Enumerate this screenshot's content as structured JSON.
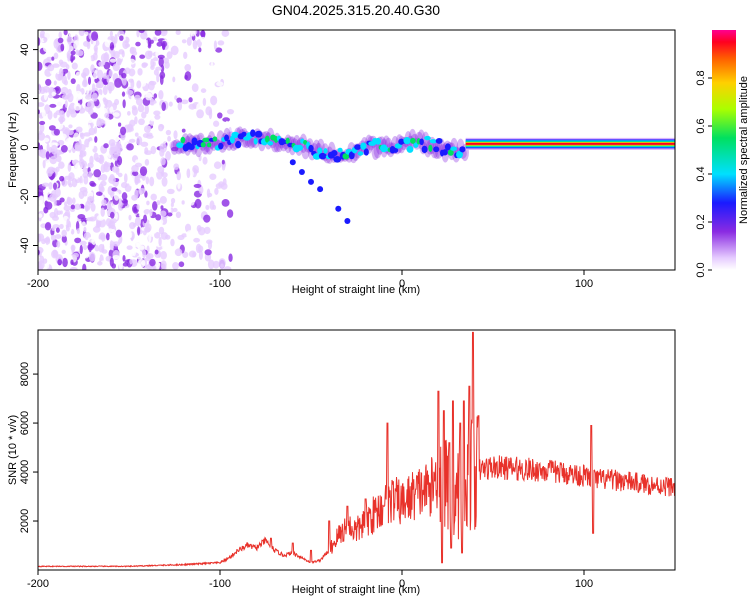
{
  "title": "GN04.2025.315.20.40.G30",
  "chart_data": [
    {
      "type": "heatmap",
      "name": "spectrogram",
      "xlabel": "Height of straight line (km)",
      "ylabel": "Frequency (Hz)",
      "xlim": [
        -200,
        150
      ],
      "ylim": [
        -50,
        48
      ],
      "xticks": [
        -200,
        -100,
        0,
        100
      ],
      "xtick_labels": [
        "-200",
        "-100",
        "0",
        "100"
      ],
      "yticks": [
        -40,
        -20,
        0,
        20,
        40
      ],
      "ytick_labels": [
        "-40",
        "-20",
        "0",
        "20",
        "40"
      ],
      "colorbar": {
        "label": "Normalized spectral amplitude",
        "range": [
          0,
          1
        ],
        "ticks": [
          0.0,
          0.2,
          0.4,
          0.6,
          0.8
        ],
        "tick_labels": [
          "0.0",
          "0.2",
          "0.4",
          "0.6",
          "0.8"
        ]
      },
      "features": {
        "noise_region_x": [
          -200,
          -100
        ],
        "dominant_line_freq_hz": 1.5,
        "dominant_line_x": [
          35,
          150
        ],
        "blob_trail": [
          [
            -120,
            1
          ],
          [
            -100,
            2
          ],
          [
            -90,
            3
          ],
          [
            -80,
            3.5
          ],
          [
            -70,
            2.5
          ],
          [
            -60,
            1.5
          ],
          [
            -50,
            -1
          ],
          [
            -40,
            -2.5
          ],
          [
            -30,
            -3.5
          ],
          [
            -20,
            0.5
          ],
          [
            -10,
            0.8
          ],
          [
            0,
            1.5
          ],
          [
            10,
            2
          ],
          [
            20,
            0.5
          ],
          [
            30,
            -1
          ]
        ],
        "descending_branch": [
          [
            -60,
            -6
          ],
          [
            -55,
            -10
          ],
          [
            -50,
            -14
          ],
          [
            -45,
            -17
          ],
          [
            -35,
            -25
          ],
          [
            -30,
            -30
          ]
        ]
      }
    },
    {
      "type": "line",
      "name": "snr",
      "xlabel": "Height of straight line (km)",
      "ylabel": "SNR (10 * v/v)",
      "xlim": [
        -200,
        150
      ],
      "ylim": [
        0,
        9800
      ],
      "xticks": [
        -200,
        -100,
        0,
        100
      ],
      "xtick_labels": [
        "-200",
        "-100",
        "0",
        "100"
      ],
      "yticks": [
        2000,
        4000,
        6000,
        8000
      ],
      "ytick_labels": [
        "2000",
        "4000",
        "6000",
        "8000"
      ],
      "color": "#e8312a",
      "envelope": [
        [
          -200,
          150
        ],
        [
          -150,
          150
        ],
        [
          -120,
          220
        ],
        [
          -100,
          300
        ],
        [
          -95,
          500
        ],
        [
          -90,
          800
        ],
        [
          -85,
          1000
        ],
        [
          -80,
          900
        ],
        [
          -75,
          1200
        ],
        [
          -70,
          800
        ],
        [
          -65,
          600
        ],
        [
          -60,
          700
        ],
        [
          -55,
          500
        ],
        [
          -50,
          300
        ],
        [
          -45,
          400
        ],
        [
          -40,
          800
        ],
        [
          -35,
          1400
        ],
        [
          -30,
          1800
        ],
        [
          -25,
          1600
        ],
        [
          -20,
          2000
        ],
        [
          -15,
          2300
        ],
        [
          -10,
          2600
        ],
        [
          -5,
          2900
        ],
        [
          0,
          2700
        ],
        [
          5,
          3000
        ],
        [
          10,
          3200
        ],
        [
          15,
          3300
        ],
        [
          20,
          3800
        ],
        [
          25,
          3400
        ],
        [
          30,
          3000
        ],
        [
          35,
          3600
        ],
        [
          40,
          4000
        ],
        [
          45,
          4150
        ],
        [
          50,
          4200
        ],
        [
          60,
          4150
        ],
        [
          70,
          4100
        ],
        [
          80,
          4050
        ],
        [
          90,
          3950
        ],
        [
          100,
          3850
        ],
        [
          105,
          3700
        ],
        [
          110,
          3700
        ],
        [
          120,
          3650
        ],
        [
          130,
          3550
        ],
        [
          140,
          3450
        ],
        [
          150,
          3400
        ]
      ],
      "spikes": [
        [
          -72,
          1300
        ],
        [
          -60,
          1100
        ],
        [
          -50,
          800
        ],
        [
          -40,
          2000
        ],
        [
          -30,
          2600
        ],
        [
          -20,
          2900
        ],
        [
          -10,
          2600
        ],
        [
          -8,
          6000
        ],
        [
          20,
          7300
        ],
        [
          23,
          6500
        ],
        [
          26,
          5200
        ],
        [
          28,
          6900
        ],
        [
          32,
          6000
        ],
        [
          34,
          6900
        ],
        [
          37,
          7500
        ],
        [
          39,
          9700
        ],
        [
          42,
          6300
        ],
        [
          104,
          5900
        ]
      ],
      "dips": [
        [
          22,
          300
        ],
        [
          27,
          900
        ],
        [
          33,
          700
        ],
        [
          105,
          1500
        ]
      ]
    }
  ]
}
